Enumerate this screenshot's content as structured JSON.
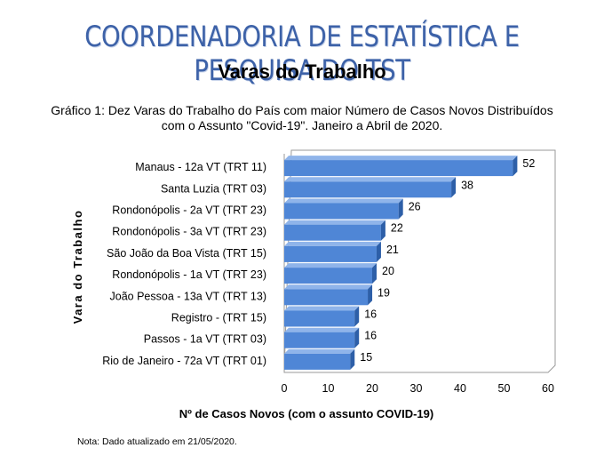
{
  "header": {
    "organization": "COORDENADORIA DE ESTATÍSTICA E PESQUISA DO TST",
    "subtitle": "Varas do Trabalho"
  },
  "chart_data": {
    "type": "bar",
    "orientation": "horizontal",
    "title": "Gráfico 1: Dez Varas do Trabalho do País com maior Número de Casos Novos Distribuídos com o Assunto \"Covid-19\". Janeiro a Abril de 2020.",
    "title_lines": [
      "Gráfico 1: Dez Varas do Trabalho do País com maior Número de Casos Novos Distribuídos",
      "com o Assunto \"Covid-19\". Janeiro a Abril de 2020."
    ],
    "categories": [
      "Manaus - 12a VT (TRT 11)",
      "Santa Luzia (TRT 03)",
      "Rondonópolis - 2a VT (TRT 23)",
      "Rondonópolis - 3a VT (TRT 23)",
      "São João da Boa Vista (TRT 15)",
      "Rondonópolis - 1a VT (TRT 23)",
      "João Pessoa - 13a VT (TRT 13)",
      "Registro - (TRT 15)",
      "Passos - 1a VT (TRT 03)",
      "Rio de Janeiro - 72a VT (TRT 01)"
    ],
    "values": [
      52,
      38,
      26,
      22,
      21,
      20,
      19,
      16,
      16,
      15
    ],
    "xlabel": "Nº de Casos Novos (com o assunto COVID-19)",
    "ylabel": "Vara do Trabalho",
    "xlim": [
      0,
      60
    ],
    "xticks": [
      0,
      10,
      20,
      30,
      40,
      50,
      60
    ],
    "grid": false,
    "legend": "none",
    "bar_color": "#4f86d6",
    "bar_side_color": "#2d5fa8"
  },
  "footer": {
    "note": "Nota: Dado atualizado em 21/05/2020."
  }
}
